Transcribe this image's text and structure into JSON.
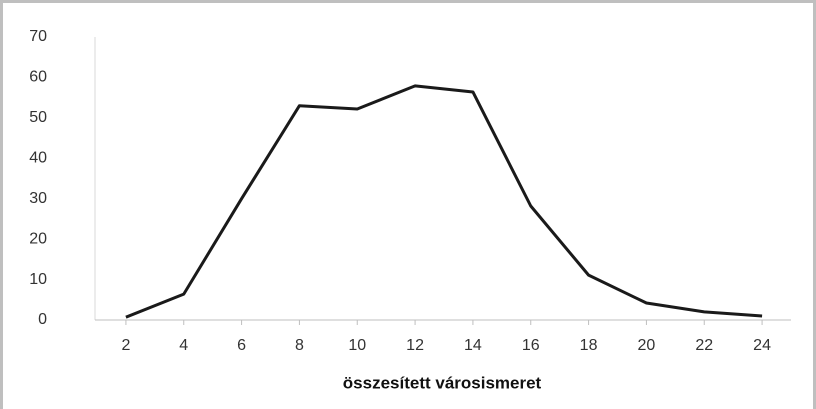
{
  "chart_data": {
    "type": "line",
    "x_label": "összesített városismeret",
    "x": [
      2,
      4,
      6,
      8,
      10,
      12,
      14,
      16,
      18,
      20,
      22,
      24
    ],
    "series": [
      {
        "name": null,
        "color": "#1a1a1a",
        "values": [
          0.7,
          6.4,
          30,
          53,
          52.2,
          57.9,
          56.4,
          28.2,
          11.1,
          4.2,
          2,
          1
        ]
      }
    ],
    "xlim": [
      1,
      25
    ],
    "xticks": [
      2,
      4,
      6,
      8,
      10,
      12,
      14,
      16,
      18,
      20,
      22,
      24
    ],
    "ylim": [
      0,
      70
    ],
    "yticks": [
      0,
      10,
      20,
      30,
      40,
      50,
      60,
      70
    ],
    "grid": false
  }
}
